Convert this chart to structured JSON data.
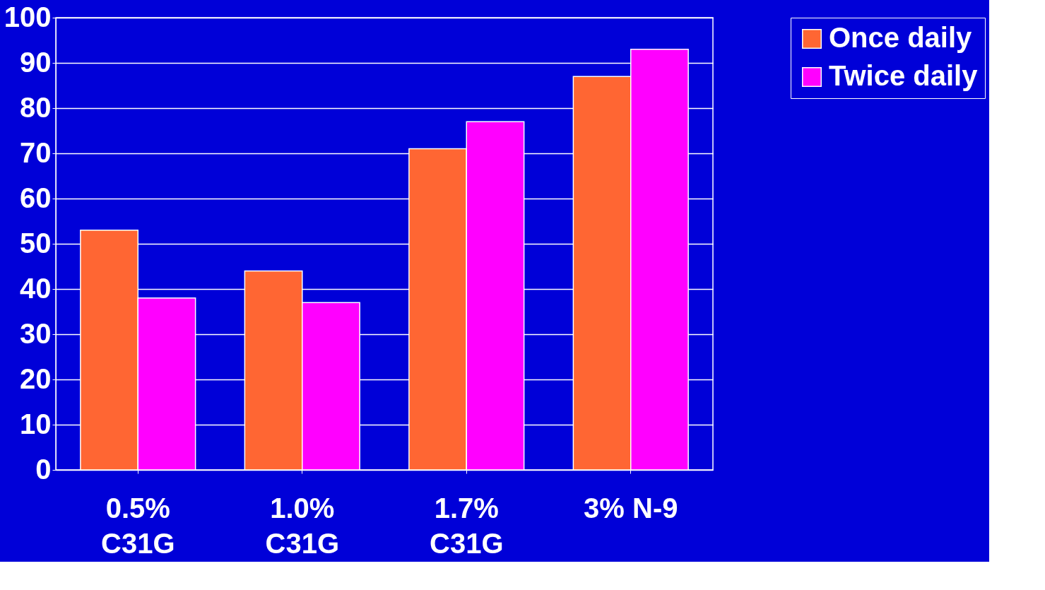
{
  "chart_data": {
    "type": "bar",
    "categories": [
      "0.5%\nC31G",
      "1.0%\nC31G",
      "1.7%\nC31G",
      "3% N-9"
    ],
    "series": [
      {
        "name": "Once daily",
        "color": "#ff6633",
        "values": [
          53,
          44,
          71,
          87
        ]
      },
      {
        "name": "Twice daily",
        "color": "#ff00ff",
        "values": [
          38,
          37,
          77,
          93
        ]
      }
    ],
    "ylim": [
      0,
      100
    ],
    "yticks": [
      0,
      10,
      20,
      30,
      40,
      50,
      60,
      70,
      80,
      90,
      100
    ],
    "grid": "y",
    "legend": "right"
  }
}
